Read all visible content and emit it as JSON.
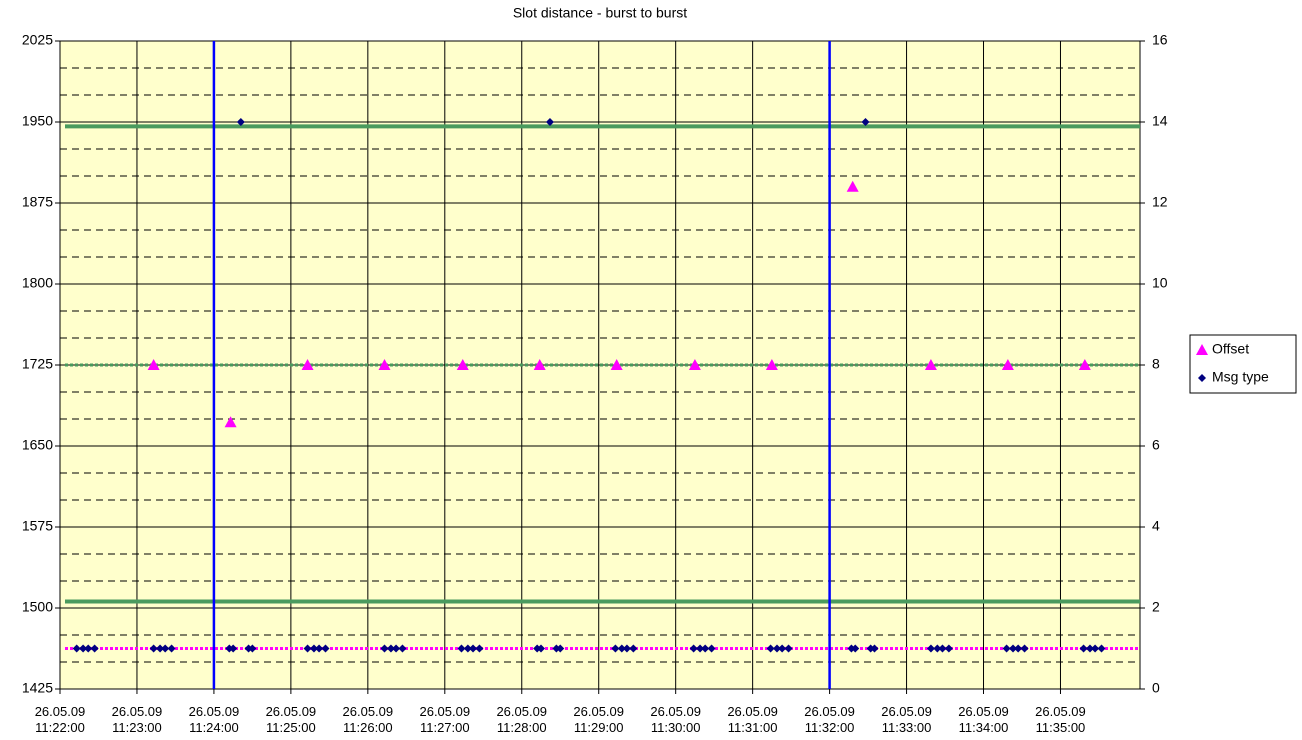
{
  "chart_data": {
    "type": "scatter",
    "title": "Slot distance - burst to burst",
    "xlim": [
      "11:22:00",
      "11:36:02"
    ],
    "xticks": [
      "26.05.09 11:22:00",
      "26.05.09 11:23:00",
      "26.05.09 11:24:00",
      "26.05.09 11:25:00",
      "26.05.09 11:26:00",
      "26.05.09 11:27:00",
      "26.05.09 11:28:00",
      "26.05.09 11:29:00",
      "26.05.09 11:30:00",
      "26.05.09 11:31:00",
      "26.05.09 11:32:00",
      "26.05.09 11:33:00",
      "26.05.09 11:34:00",
      "26.05.09 11:35:00"
    ],
    "ylim": [
      1425,
      2025
    ],
    "yticks": [
      1425,
      1500,
      1575,
      1650,
      1725,
      1800,
      1875,
      1950,
      2025
    ],
    "y2lim": [
      0,
      16
    ],
    "y2ticks": [
      0,
      2,
      4,
      6,
      8,
      10,
      12,
      14,
      16
    ],
    "grid": true,
    "minor_per_major": 3,
    "background": "#ffffcc",
    "legend": "right",
    "series": [
      {
        "name": "Offset",
        "color": "#ff00ff",
        "marker": "triangle",
        "x": [
          "11:23:13",
          "11:24:13",
          "11:25:13",
          "11:26:13",
          "11:27:14",
          "11:28:14",
          "11:29:14",
          "11:30:15",
          "11:31:15",
          "11:32:18",
          "11:33:19",
          "11:34:19",
          "11:35:19"
        ],
        "values": [
          1725,
          1672,
          1725,
          1725,
          1725,
          1725,
          1725,
          1725,
          1725,
          1890,
          1725,
          1725,
          1725
        ]
      },
      {
        "name": "Msg type",
        "color": "#000080",
        "marker": "diamond",
        "axis": "y2",
        "x": [
          "11:22:13",
          "11:22:18",
          "11:22:22",
          "11:22:27",
          "11:23:13",
          "11:23:18",
          "11:23:22",
          "11:23:27",
          "11:24:12",
          "11:24:15",
          "11:24:21",
          "11:24:27",
          "11:24:30",
          "11:25:13",
          "11:25:18",
          "11:25:22",
          "11:25:27",
          "11:26:13",
          "11:26:18",
          "11:26:22",
          "11:26:27",
          "11:27:13",
          "11:27:18",
          "11:27:22",
          "11:27:27",
          "11:28:12",
          "11:28:15",
          "11:28:22",
          "11:28:27",
          "11:28:30",
          "11:29:13",
          "11:29:18",
          "11:29:22",
          "11:29:27",
          "11:30:14",
          "11:30:19",
          "11:30:23",
          "11:30:28",
          "11:31:14",
          "11:31:19",
          "11:31:23",
          "11:31:28",
          "11:32:17",
          "11:32:20",
          "11:32:28",
          "11:32:32",
          "11:32:35",
          "11:33:19",
          "11:33:24",
          "11:33:28",
          "11:33:33",
          "11:34:18",
          "11:34:23",
          "11:34:27",
          "11:34:32",
          "11:35:18",
          "11:35:23",
          "11:35:27",
          "11:35:32"
        ],
        "values": [
          1,
          1,
          1,
          1,
          1,
          1,
          1,
          1,
          1,
          1,
          14,
          1,
          1,
          1,
          1,
          1,
          1,
          1,
          1,
          1,
          1,
          1,
          1,
          1,
          1,
          1,
          1,
          14,
          1,
          1,
          1,
          1,
          1,
          1,
          1,
          1,
          1,
          1,
          1,
          1,
          1,
          1,
          1,
          1,
          14,
          1,
          1,
          1,
          1,
          1,
          1,
          1,
          1,
          1,
          1,
          1,
          1,
          1,
          1
        ]
      }
    ],
    "reference_lines": [
      {
        "axis": "y",
        "value": 1946,
        "color": "#4a9a5e",
        "style": "solid"
      },
      {
        "axis": "y",
        "value": 1506,
        "color": "#4a9a5e",
        "style": "solid"
      },
      {
        "axis": "y",
        "value": 1725,
        "color": "#4a9a5e",
        "style": "dotted"
      },
      {
        "axis": "y2",
        "value": 1,
        "color": "#ff00ff",
        "style": "dotted"
      },
      {
        "axis": "x",
        "value": "11:24:00",
        "color": "#0000ff",
        "style": "solid"
      },
      {
        "axis": "x",
        "value": "11:32:00",
        "color": "#0000ff",
        "style": "solid"
      }
    ]
  }
}
